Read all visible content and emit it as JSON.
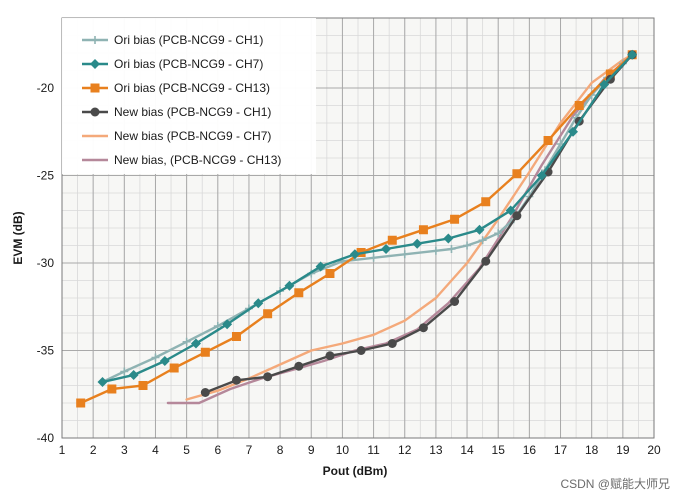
{
  "watermark": "CSDN @赋能大师兄",
  "chart_data": {
    "type": "line",
    "xlabel": "Pout (dBm)",
    "ylabel": "EVM (dB)",
    "xlim": [
      1,
      20
    ],
    "ylim": [
      -40,
      -16
    ],
    "x_ticks": [
      1,
      2,
      3,
      4,
      5,
      6,
      7,
      8,
      9,
      10,
      11,
      12,
      13,
      14,
      15,
      16,
      17,
      18,
      19,
      20
    ],
    "y_ticks": [
      -40,
      -35,
      -30,
      -25,
      -20
    ],
    "grid": true,
    "legend_position": "top-left",
    "series": [
      {
        "name": "Ori bias (PCB-NCG9 - CH1)",
        "color": "#8fb3b3",
        "marker": "plus",
        "x": [
          2.3,
          3.0,
          4.0,
          5.0,
          6.0,
          7.0,
          8.0,
          9.0,
          10.0,
          11.0,
          12.0,
          13.0,
          13.5,
          14.0,
          14.5,
          15.0,
          15.5,
          16.0,
          16.5,
          17.0,
          17.5,
          18.0,
          18.5,
          19.0,
          19.3
        ],
        "y": [
          -36.8,
          -36.2,
          -35.4,
          -34.5,
          -33.6,
          -32.6,
          -31.6,
          -30.6,
          -29.9,
          -29.7,
          -29.5,
          -29.3,
          -29.2,
          -29.0,
          -28.7,
          -28.3,
          -27.5,
          -26.2,
          -24.7,
          -23.2,
          -21.7,
          -20.4,
          -19.4,
          -18.6,
          -18.1
        ]
      },
      {
        "name": "Ori bias (PCB-NCG9 - CH7)",
        "color": "#2a8a8a",
        "marker": "diamond",
        "x": [
          2.3,
          3.3,
          4.3,
          5.3,
          6.3,
          7.3,
          8.3,
          9.3,
          10.4,
          11.4,
          12.4,
          13.4,
          14.4,
          15.4,
          16.4,
          17.4,
          18.4,
          19.3
        ],
        "y": [
          -36.8,
          -36.4,
          -35.6,
          -34.6,
          -33.5,
          -32.3,
          -31.3,
          -30.2,
          -29.5,
          -29.2,
          -28.9,
          -28.6,
          -28.1,
          -27.0,
          -25.0,
          -22.5,
          -19.8,
          -18.1
        ]
      },
      {
        "name": "Ori bias (PCB-NCG9 - CH13)",
        "color": "#e8801e",
        "marker": "square",
        "x": [
          1.6,
          2.6,
          3.6,
          4.6,
          5.6,
          6.6,
          7.6,
          8.6,
          9.6,
          10.6,
          11.6,
          12.6,
          13.6,
          14.6,
          15.6,
          16.6,
          17.6,
          18.6,
          19.3
        ],
        "y": [
          -38.0,
          -37.2,
          -37.0,
          -36.0,
          -35.1,
          -34.2,
          -32.9,
          -31.7,
          -30.6,
          -29.4,
          -28.7,
          -28.1,
          -27.5,
          -26.5,
          -24.9,
          -23.0,
          -21.0,
          -19.2,
          -18.1
        ]
      },
      {
        "name": "New bias (PCB-NCG9 - CH1)",
        "color": "#4a4a4a",
        "marker": "circle",
        "x": [
          5.6,
          6.6,
          7.6,
          8.6,
          9.6,
          10.6,
          11.6,
          12.6,
          13.6,
          14.6,
          15.6,
          16.6,
          17.6,
          18.6,
          19.3
        ],
        "y": [
          -37.4,
          -36.7,
          -36.5,
          -35.9,
          -35.3,
          -35.0,
          -34.6,
          -33.7,
          -32.2,
          -29.9,
          -27.3,
          -24.8,
          -21.9,
          -19.5,
          -18.1
        ]
      },
      {
        "name": "New bias (PCB-NCG9 - CH7)",
        "color": "#f4a97a",
        "marker": "none",
        "x": [
          5.0,
          6.0,
          7.0,
          8.0,
          9.0,
          10.0,
          11.0,
          12.0,
          13.0,
          14.0,
          15.0,
          16.0,
          17.0,
          18.0,
          19.0,
          19.3
        ],
        "y": [
          -37.8,
          -37.3,
          -36.6,
          -35.8,
          -35.0,
          -34.6,
          -34.1,
          -33.3,
          -32.0,
          -30.0,
          -27.5,
          -24.8,
          -22.0,
          -19.7,
          -18.4,
          -18.1
        ]
      },
      {
        "name": "New bias, (PCB-NCG9 - CH13)",
        "color": "#b5889a",
        "marker": "none",
        "x": [
          4.4,
          5.4,
          6.4,
          7.4,
          8.4,
          9.4,
          10.4,
          11.4,
          12.4,
          13.4,
          14.4,
          15.4,
          16.4,
          17.4,
          18.4,
          19.3
        ],
        "y": [
          -38.0,
          -38.0,
          -37.2,
          -36.6,
          -36.1,
          -35.6,
          -35.0,
          -34.6,
          -33.8,
          -32.3,
          -30.3,
          -27.5,
          -24.4,
          -21.6,
          -19.5,
          -18.1
        ]
      }
    ]
  }
}
